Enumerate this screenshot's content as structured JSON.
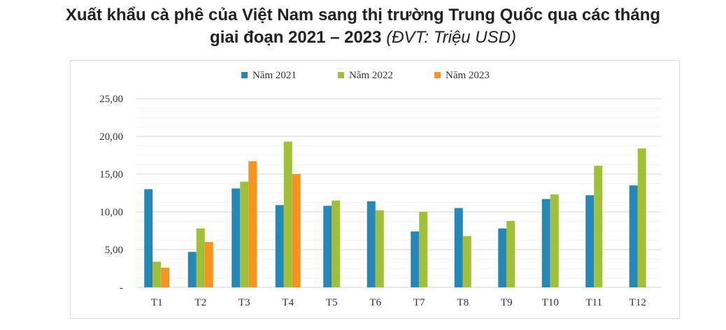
{
  "title": {
    "line1": "Xuất khẩu cà phê của Việt Nam sang thị trường Trung Quốc qua các tháng",
    "line2_bold": "giai đoạn 2021 – 2023",
    "line2_italic": "(ĐVT: Triệu USD)"
  },
  "chart_data": {
    "type": "bar",
    "title": "Xuất khẩu cà phê của Việt Nam sang thị trường Trung Quốc qua các tháng giai đoạn 2021 – 2023 (ĐVT: Triệu USD)",
    "categories": [
      "T1",
      "T2",
      "T3",
      "T4",
      "T5",
      "T6",
      "T7",
      "T8",
      "T9",
      "T10",
      "T11",
      "T12"
    ],
    "series": [
      {
        "name": "Năm 2021",
        "color": "#2587b6",
        "values": [
          13.0,
          4.7,
          13.1,
          10.9,
          10.8,
          11.4,
          7.4,
          10.5,
          7.8,
          11.7,
          12.2,
          13.5
        ]
      },
      {
        "name": "Năm 2022",
        "color": "#a2c037",
        "values": [
          3.4,
          7.8,
          14.0,
          19.3,
          11.5,
          10.2,
          10.0,
          6.8,
          8.8,
          12.3,
          16.1,
          18.4
        ]
      },
      {
        "name": "Năm 2023",
        "color": "#f7931e",
        "values": [
          2.6,
          6.0,
          16.7,
          15.0,
          null,
          null,
          null,
          null,
          null,
          null,
          null,
          null
        ]
      }
    ],
    "yticks": [
      "-",
      "5,00",
      "10,00",
      "15,00",
      "20,00",
      "25,00"
    ],
    "ylim": [
      0,
      25
    ],
    "grid": true,
    "legend": "top"
  }
}
